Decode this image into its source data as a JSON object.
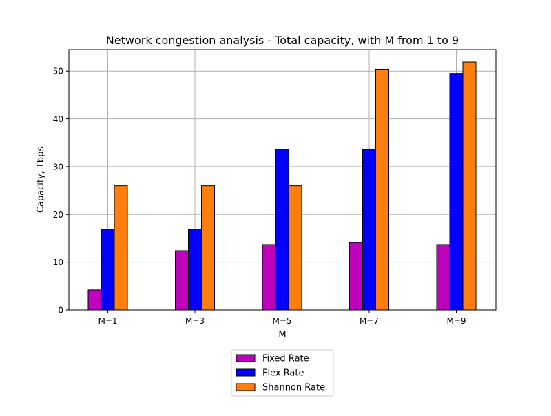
{
  "chart_data": {
    "type": "bar",
    "title": "Network congestion analysis - Total capacity, with M from 1 to 9",
    "xlabel": "M",
    "ylabel": "Capacity, Tbps",
    "categories": [
      "M=1",
      "M=3",
      "M=5",
      "M=7",
      "M=9"
    ],
    "ylim": [
      0,
      54.5
    ],
    "yticks": [
      0,
      10,
      20,
      30,
      40,
      50
    ],
    "grid": true,
    "legend_position": "bottom-center",
    "series": [
      {
        "name": "Fixed Rate",
        "color": "#bf00bf",
        "values": [
          4.2,
          12.4,
          13.7,
          14.1,
          13.7
        ]
      },
      {
        "name": "Flex Rate",
        "color": "#0000ff",
        "values": [
          16.9,
          16.9,
          33.6,
          33.6,
          49.5
        ]
      },
      {
        "name": "Shannon Rate",
        "color": "#ff7f0e",
        "values": [
          26.0,
          26.0,
          26.0,
          50.4,
          51.9
        ]
      }
    ]
  }
}
